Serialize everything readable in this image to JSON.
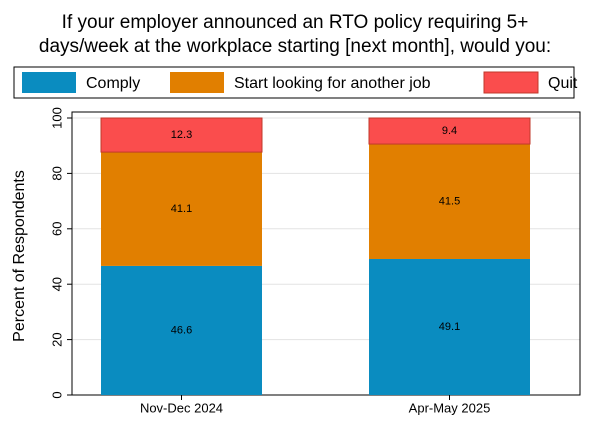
{
  "chart_data": {
    "type": "stacked_bar",
    "title": [
      "If your employer announced an RTO policy requiring 5+",
      "days/week at the workplace starting [next month], would you:"
    ],
    "y_label": "Percent of Respondents",
    "categories": [
      "Nov-Dec 2024",
      "Apr-May 2025"
    ],
    "series": [
      {
        "name": "Comply",
        "color": "#0a8cc0",
        "values": [
          46.6,
          49.1
        ]
      },
      {
        "name": "Start looking for another job",
        "color": "#e17f00",
        "values": [
          41.1,
          41.5
        ]
      },
      {
        "name": "Quit",
        "color": "#fa4d4d",
        "values": [
          12.3,
          9.4
        ]
      }
    ],
    "ylim": [
      0,
      100
    ],
    "yticks": [
      0,
      20,
      40,
      60,
      80,
      100
    ],
    "grid": true,
    "legend": "top"
  }
}
